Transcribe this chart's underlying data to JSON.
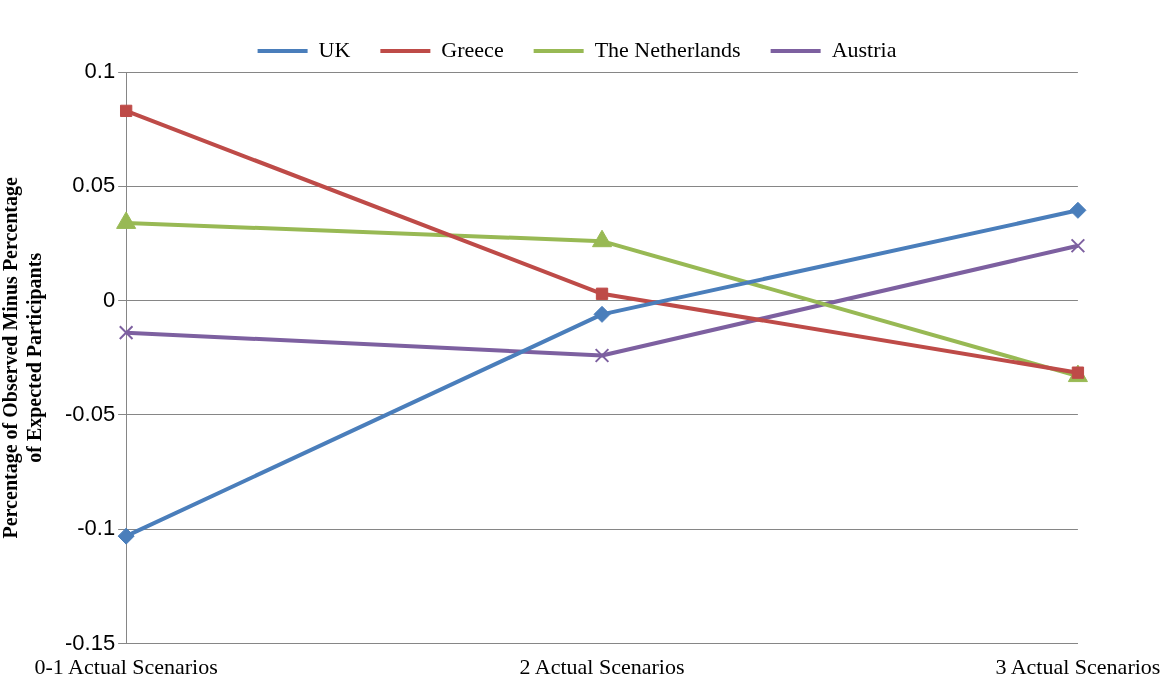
{
  "chart_data": {
    "type": "line",
    "ylabel": "Percentage of Observed Minus Percentage of Expected Participants",
    "categories": [
      "0-1 Actual Scenarios",
      "2 Actual Scenarios",
      "3 Actual Scenarios"
    ],
    "series": [
      {
        "name": "UK",
        "color": "#4a7ebb",
        "marker": "diamond",
        "values": [
          -0.103,
          -0.006,
          0.0395
        ]
      },
      {
        "name": "Greece",
        "color": "#be4b48",
        "marker": "square",
        "values": [
          0.083,
          0.003,
          -0.0315
        ]
      },
      {
        "name": "The Netherlands",
        "color": "#98b954",
        "marker": "triangle",
        "values": [
          0.034,
          0.026,
          -0.033
        ]
      },
      {
        "name": "Austria",
        "color": "#7d60a0",
        "marker": "cross",
        "values": [
          -0.014,
          -0.024,
          0.024
        ]
      }
    ],
    "ylim": [
      -0.15,
      0.1
    ],
    "yticks": [
      -0.15,
      -0.1,
      -0.05,
      0,
      0.05,
      0.1
    ],
    "grid": "y",
    "legend": "top",
    "line_style": "solid"
  }
}
